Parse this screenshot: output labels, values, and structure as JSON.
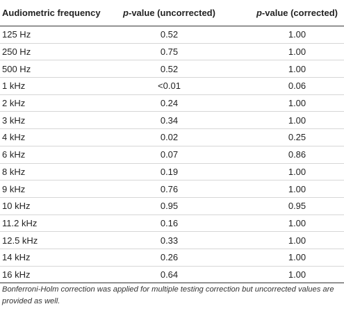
{
  "table": {
    "headers": {
      "frequency": "Audiometric frequency",
      "uncorrected_p": "p",
      "uncorrected_rest": "-value (uncorrected)",
      "corrected_p": "p",
      "corrected_rest": "-value (corrected)"
    },
    "rows": [
      {
        "frequency": "125 Hz",
        "uncorrected": "0.52",
        "corrected": "1.00"
      },
      {
        "frequency": "250 Hz",
        "uncorrected": "0.75",
        "corrected": "1.00"
      },
      {
        "frequency": "500 Hz",
        "uncorrected": "0.52",
        "corrected": "1.00"
      },
      {
        "frequency": "1 kHz",
        "uncorrected": "<0.01",
        "corrected": "0.06"
      },
      {
        "frequency": "2 kHz",
        "uncorrected": "0.24",
        "corrected": "1.00"
      },
      {
        "frequency": "3 kHz",
        "uncorrected": "0.34",
        "corrected": "1.00"
      },
      {
        "frequency": "4 kHz",
        "uncorrected": "0.02",
        "corrected": "0.25"
      },
      {
        "frequency": "6 kHz",
        "uncorrected": "0.07",
        "corrected": "0.86"
      },
      {
        "frequency": "8 kHz",
        "uncorrected": "0.19",
        "corrected": "1.00"
      },
      {
        "frequency": "9 kHz",
        "uncorrected": "0.76",
        "corrected": "1.00"
      },
      {
        "frequency": "10 kHz",
        "uncorrected": "0.95",
        "corrected": "0.95"
      },
      {
        "frequency": "11.2 kHz",
        "uncorrected": "0.16",
        "corrected": "1.00"
      },
      {
        "frequency": "12.5 kHz",
        "uncorrected": "0.33",
        "corrected": "1.00"
      },
      {
        "frequency": "14 kHz",
        "uncorrected": "0.26",
        "corrected": "1.00"
      },
      {
        "frequency": "16 kHz",
        "uncorrected": "0.64",
        "corrected": "1.00"
      }
    ]
  },
  "footnote": "Bonferroni-Holm correction was applied for multiple testing correction but uncorrected values are provided as well."
}
